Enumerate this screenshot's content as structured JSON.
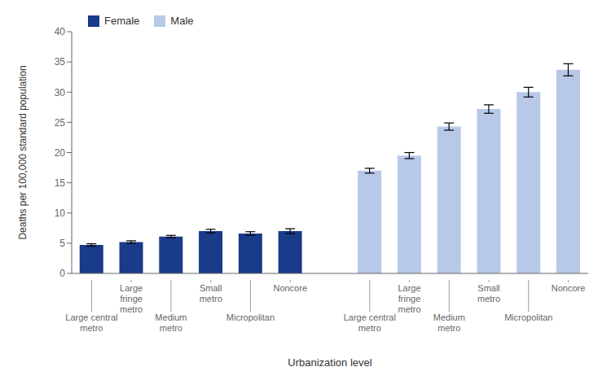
{
  "chart_data": {
    "type": "bar",
    "xlabel": "Urbanization level",
    "ylabel": "Deaths per 100,000 standard population",
    "categories": [
      "Large central\nmetro",
      "Large\nfringe\nmetro",
      "Medium\nmetro",
      "Small\nmetro",
      "Micropolitan",
      "Noncore",
      "Large central\nmetro",
      "Large\nfringe\nmetro",
      "Medium\nmetro",
      "Small\nmetro",
      "Micropolitan",
      "Noncore"
    ],
    "series": [
      {
        "name": "Female",
        "color": "#1a3a8a",
        "values": [
          4.7,
          5.2,
          6.1,
          7.0,
          6.6,
          7.0,
          null,
          null,
          null,
          null,
          null,
          null
        ],
        "errors": [
          0.2,
          0.2,
          0.2,
          0.3,
          0.3,
          0.4,
          null,
          null,
          null,
          null,
          null,
          null
        ]
      },
      {
        "name": "Male",
        "color": "#b8c8e8",
        "values": [
          null,
          null,
          null,
          null,
          null,
          null,
          17.0,
          19.5,
          24.3,
          27.2,
          30.0,
          33.7
        ],
        "errors": [
          null,
          null,
          null,
          null,
          null,
          null,
          0.4,
          0.5,
          0.6,
          0.7,
          0.8,
          1.0
        ]
      }
    ],
    "ylim": [
      0,
      40
    ],
    "yticks": [
      0,
      5,
      10,
      15,
      20,
      25,
      30,
      35,
      40
    ],
    "grid": false,
    "legend": "upper left"
  }
}
